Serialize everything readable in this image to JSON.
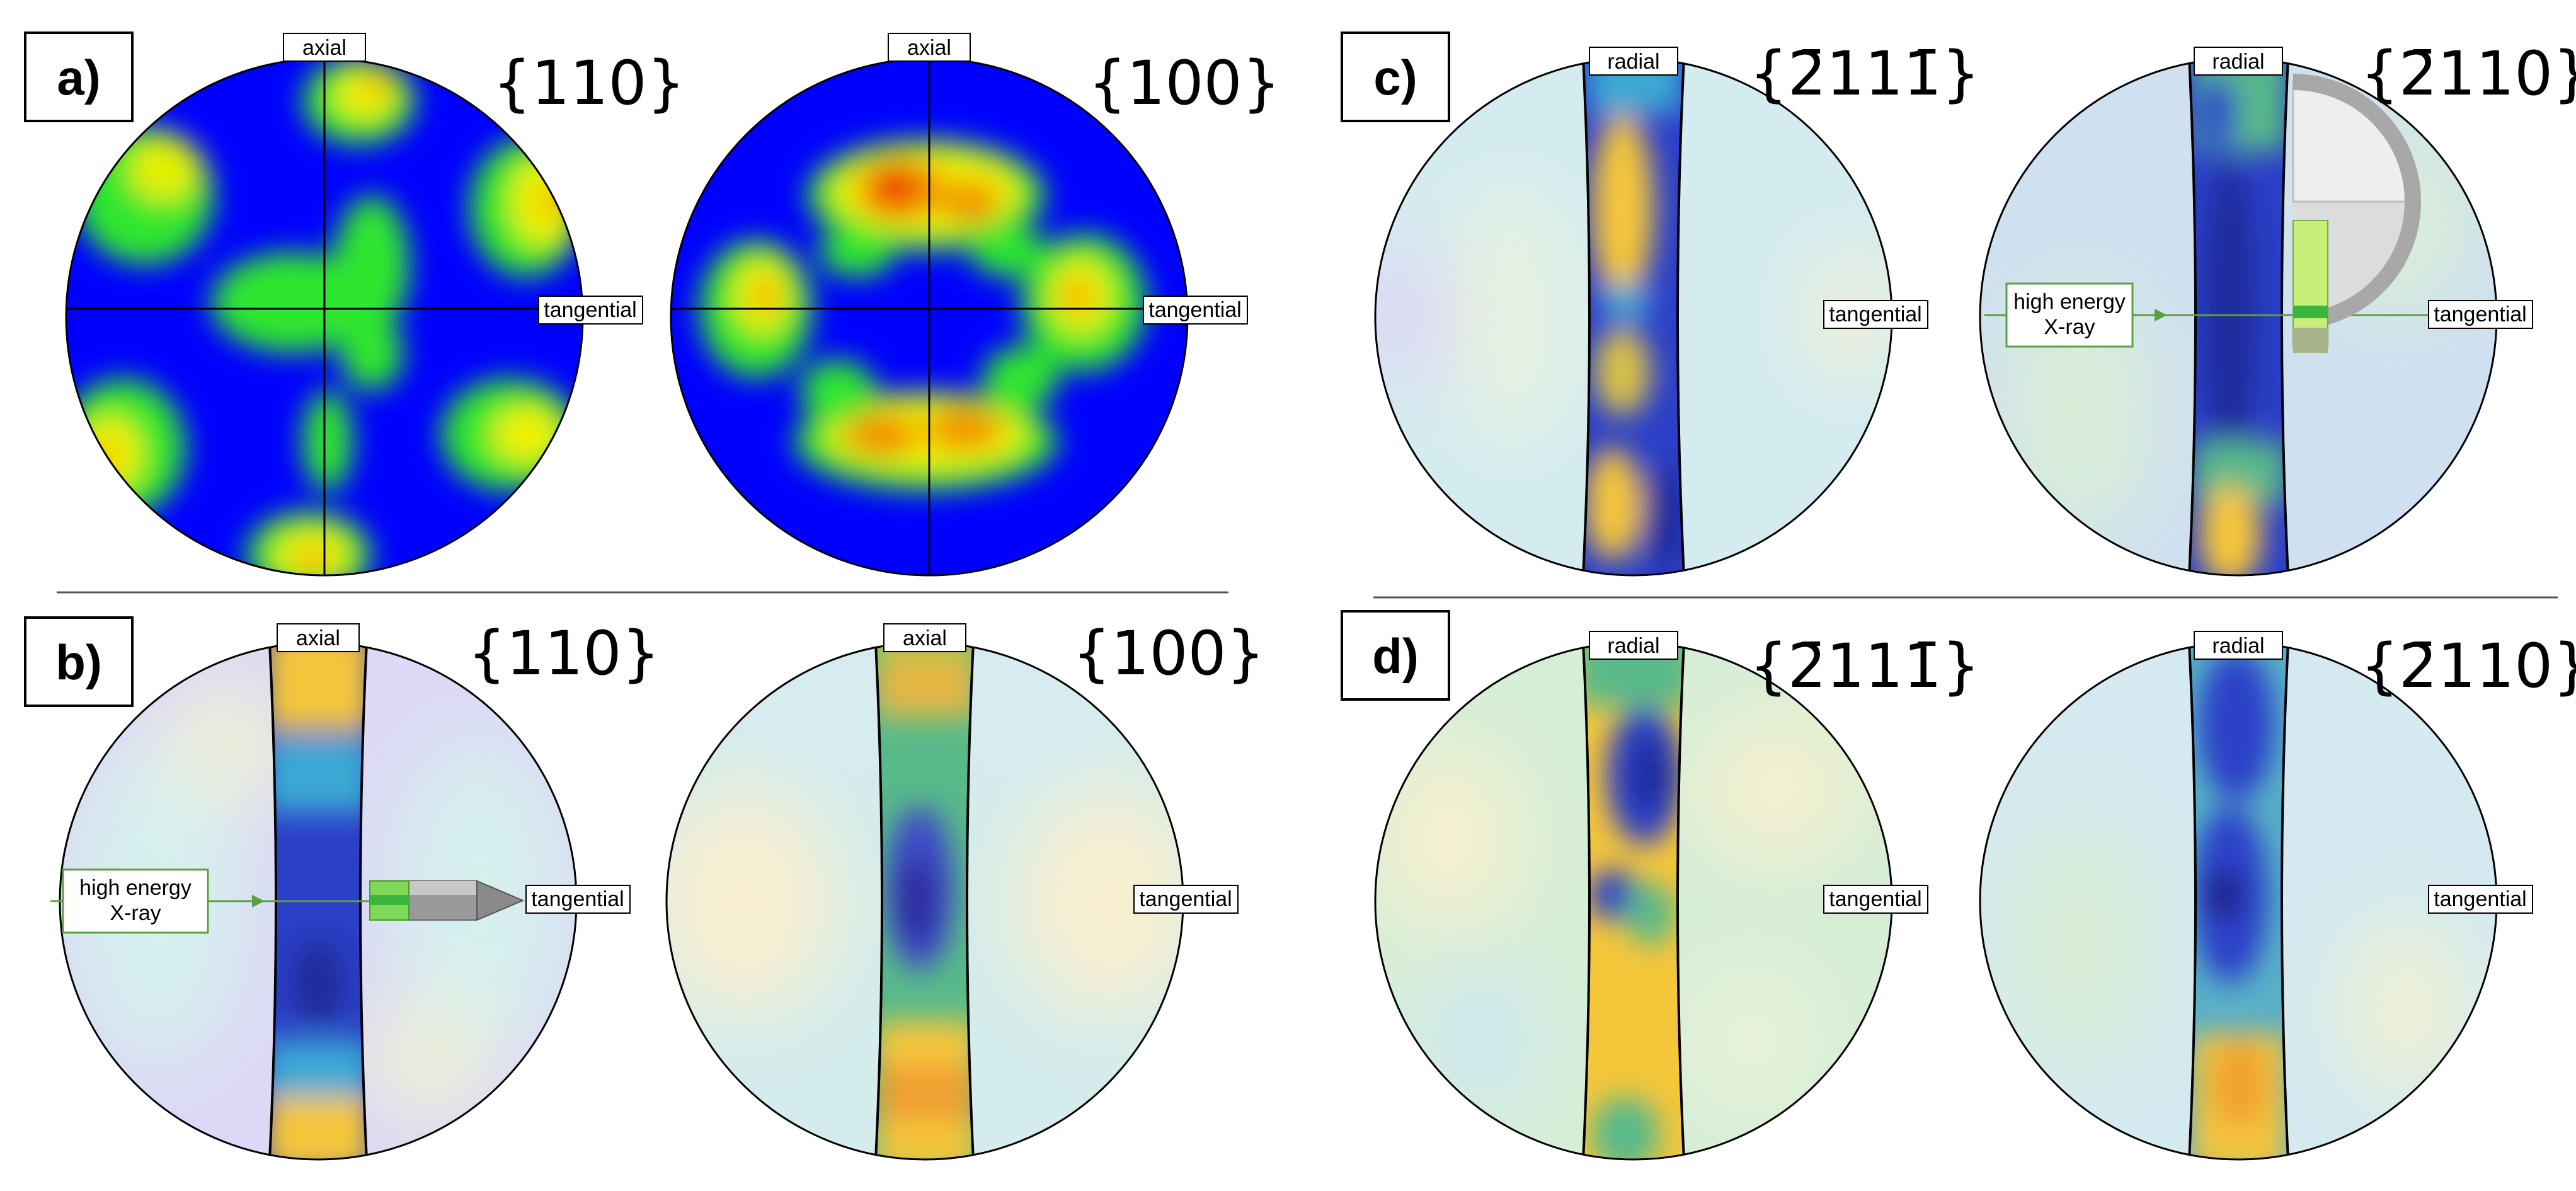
{
  "panels": {
    "a": {
      "label": "a)",
      "left_title": "{110}",
      "right_title": "{100}",
      "axis_top": "axial",
      "axis_right": "tangential"
    },
    "b": {
      "label": "b)",
      "left_title": "{110}",
      "right_title": "{100}",
      "axis_top": "axial",
      "axis_right": "tangential"
    },
    "c": {
      "label": "c)",
      "left_title": "{2̄111̄}",
      "right_title": "{2̄110}",
      "axis_top": "radial",
      "axis_right": "tangential"
    },
    "d": {
      "label": "d)",
      "left_title": "{2̄111̄}",
      "right_title": "{2̄110}",
      "axis_top": "radial",
      "axis_right": "tangential"
    }
  },
  "xray_label": {
    "line1": "high energy",
    "line2": "X-ray"
  },
  "colors": {
    "pole_blue": "#0000ff",
    "intensity_green": "#2ee62e",
    "intensity_yellow": "#f2f200",
    "intensity_red": "#f23200",
    "band_blue": "#2b3fc8",
    "band_yellow": "#f5c63a",
    "xray_line": "#5aa043"
  }
}
